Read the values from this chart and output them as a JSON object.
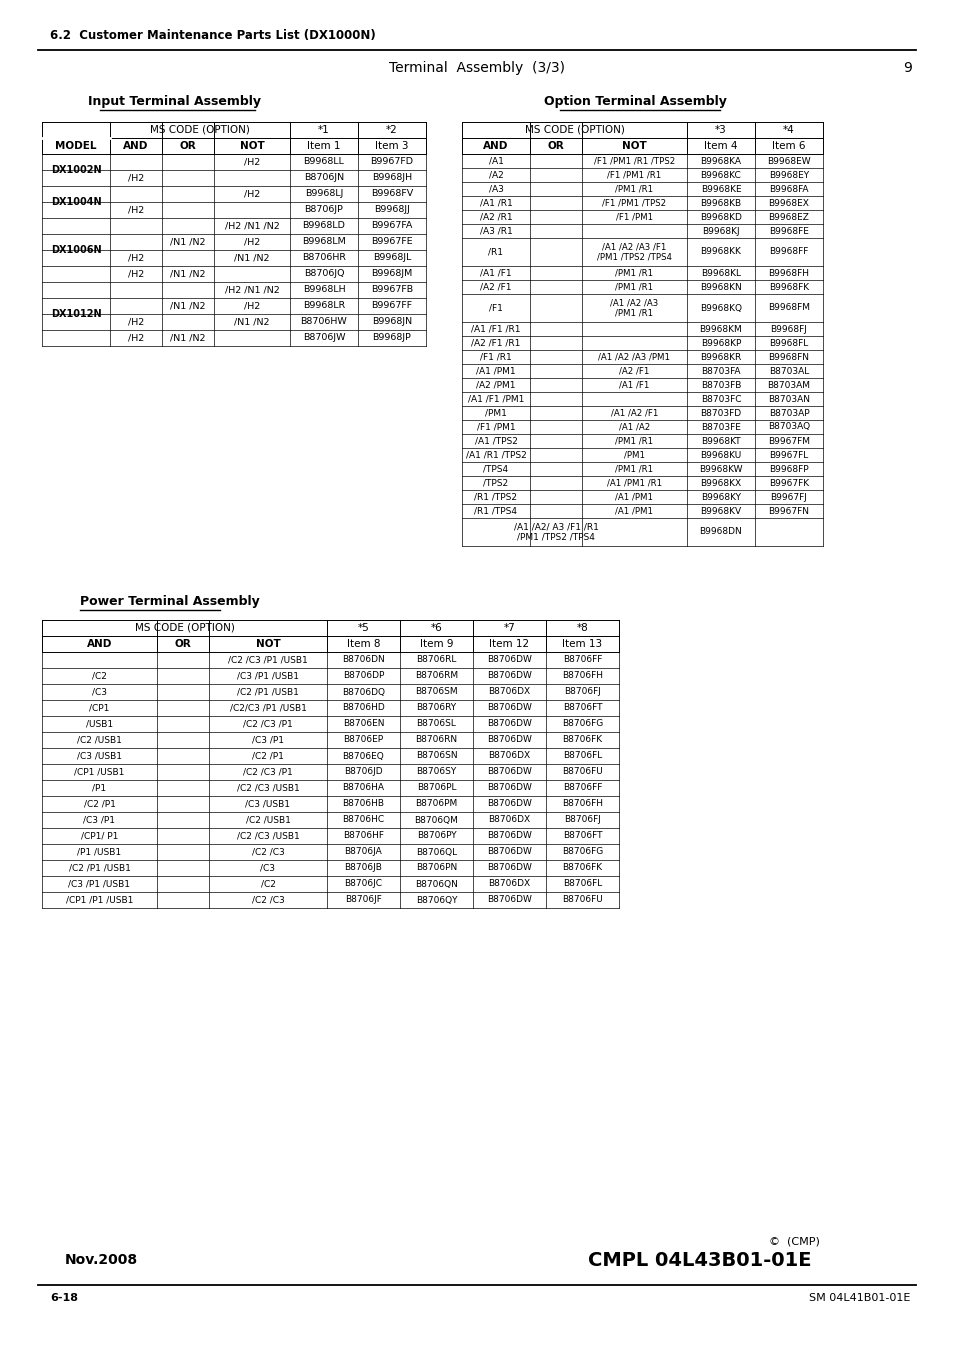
{
  "page_title_left": "6.2  Customer Maintenance Parts List (DX1000N)",
  "page_title_center": "Terminal  Assembly  (3/3)",
  "page_number": "9",
  "footer_left": "6-18",
  "footer_right": "SM 04L41B01-01E",
  "copyright": "©  (CMP)",
  "bottom_right": "CMPL 04L43B01-01E",
  "date": "Nov.2008",
  "input_title": "Input Terminal Assembly",
  "option_title": "Option Terminal Assembly",
  "power_title": "Power Terminal Assembly",
  "input_rows": [
    [
      "",
      "",
      "/H2",
      "B9968LL",
      "B9967FD"
    ],
    [
      "/H2",
      "",
      "",
      "B8706JN",
      "B9968JH"
    ],
    [
      "",
      "",
      "/H2",
      "B9968LJ",
      "B9968FV"
    ],
    [
      "/H2",
      "",
      "",
      "B8706JP",
      "B9968JJ"
    ],
    [
      "",
      "",
      "/H2 /N1 /N2",
      "B9968LD",
      "B9967FA"
    ],
    [
      "",
      "/N1 /N2",
      "/H2",
      "B9968LM",
      "B9967FE"
    ],
    [
      "/H2",
      "",
      "/N1 /N2",
      "B8706HR",
      "B9968JL"
    ],
    [
      "/H2",
      "/N1 /N2",
      "",
      "B8706JQ",
      "B9968JM"
    ],
    [
      "",
      "",
      "/H2 /N1 /N2",
      "B9968LH",
      "B9967FB"
    ],
    [
      "",
      "/N1 /N2",
      "/H2",
      "B9968LR",
      "B9967FF"
    ],
    [
      "/H2",
      "",
      "/N1 /N2",
      "B8706HW",
      "B9968JN"
    ],
    [
      "/H2",
      "/N1 /N2",
      "",
      "B8706JW",
      "B9968JP"
    ]
  ],
  "input_models": [
    "DX1002N",
    "DX1004N",
    "DX1006N",
    "DX1012N"
  ],
  "input_model_spans": [
    2,
    2,
    4,
    4
  ],
  "opt_rows": [
    [
      "/A1",
      "",
      "/F1 /PM1 /R1 /TPS2",
      "B9968KA",
      "B9968EW"
    ],
    [
      "/A2",
      "",
      "/F1 /PM1 /R1",
      "B9968KC",
      "B9968EY"
    ],
    [
      "/A3",
      "",
      "/PM1 /R1",
      "B9968KE",
      "B9968FA"
    ],
    [
      "/A1 /R1",
      "",
      "/F1 /PM1 /TPS2",
      "B9968KB",
      "B9968EX"
    ],
    [
      "/A2 /R1",
      "",
      "/F1 /PM1",
      "B9968KD",
      "B9968EZ"
    ],
    [
      "/A3 /R1",
      "",
      "",
      "B9968KJ",
      "B9968FE"
    ],
    [
      "/R1",
      "",
      "/A1 /A2 /A3 /F1\n/PM1 /TPS2 /TPS4",
      "B9968KK",
      "B9968FF"
    ],
    [
      "/A1 /F1",
      "",
      "/PM1 /R1",
      "B9968KL",
      "B9968FH"
    ],
    [
      "/A2 /F1",
      "",
      "/PM1 /R1",
      "B9968KN",
      "B9968FK"
    ],
    [
      "/F1",
      "",
      "/A1 /A2 /A3\n/PM1 /R1",
      "B9968KQ",
      "B9968FM"
    ],
    [
      "/A1 /F1 /R1",
      "",
      "",
      "B9968KM",
      "B9968FJ"
    ],
    [
      "/A2 /F1 /R1",
      "",
      "",
      "B9968KP",
      "B9968FL"
    ],
    [
      "/F1 /R1",
      "",
      "/A1 /A2 /A3 /PM1",
      "B9968KR",
      "B9968FN"
    ],
    [
      "/A1 /PM1",
      "",
      "/A2 /F1",
      "B8703FA",
      "B8703AL"
    ],
    [
      "/A2 /PM1",
      "",
      "/A1 /F1",
      "B8703FB",
      "B8703AM"
    ],
    [
      "/A1 /F1 /PM1",
      "",
      "",
      "B8703FC",
      "B8703AN"
    ],
    [
      "/PM1",
      "",
      "/A1 /A2 /F1",
      "B8703FD",
      "B8703AP"
    ],
    [
      "/F1 /PM1",
      "",
      "/A1 /A2",
      "B8703FE",
      "B8703AQ"
    ],
    [
      "/A1 /TPS2",
      "",
      "/PM1 /R1",
      "B9968KT",
      "B9967FM"
    ],
    [
      "/A1 /R1 /TPS2",
      "",
      "/PM1",
      "B9968KU",
      "B9967FL"
    ],
    [
      "/TPS4",
      "",
      "/PM1 /R1",
      "B9968KW",
      "B9968FP"
    ],
    [
      "/TPS2",
      "",
      "/A1 /PM1 /R1",
      "B9968KX",
      "B9967FK"
    ],
    [
      "/R1 /TPS2",
      "",
      "/A1 /PM1",
      "B9968KY",
      "B9967FJ"
    ],
    [
      "/R1 /TPS4",
      "",
      "/A1 /PM1",
      "B9968KV",
      "B9967FN"
    ],
    [
      "",
      "/A1 /A2/ A3 /F1 /R1\n/PM1 /TPS2 /TPS4",
      "",
      "B9968DN",
      ""
    ]
  ],
  "pwr_rows": [
    [
      "",
      "",
      "/C2 /C3 /P1 /USB1",
      "B8706DN",
      "B8706RL",
      "B8706DW",
      "B8706FF"
    ],
    [
      "/C2",
      "",
      "/C3 /P1 /USB1",
      "B8706DP",
      "B8706RM",
      "B8706DW",
      "B8706FH"
    ],
    [
      "/C3",
      "",
      "/C2 /P1 /USB1",
      "B8706DQ",
      "B8706SM",
      "B8706DX",
      "B8706FJ"
    ],
    [
      "/CP1",
      "",
      "/C2/C3 /P1 /USB1",
      "B8706HD",
      "B8706RY",
      "B8706DW",
      "B8706FT"
    ],
    [
      "/USB1",
      "",
      "/C2 /C3 /P1",
      "B8706EN",
      "B8706SL",
      "B8706DW",
      "B8706FG"
    ],
    [
      "/C2 /USB1",
      "",
      "/C3 /P1",
      "B8706EP",
      "B8706RN",
      "B8706DW",
      "B8706FK"
    ],
    [
      "/C3 /USB1",
      "",
      "/C2 /P1",
      "B8706EQ",
      "B8706SN",
      "B8706DX",
      "B8706FL"
    ],
    [
      "/CP1 /USB1",
      "",
      "/C2 /C3 /P1",
      "B8706JD",
      "B8706SY",
      "B8706DW",
      "B8706FU"
    ],
    [
      "/P1",
      "",
      "/C2 /C3 /USB1",
      "B8706HA",
      "B8706PL",
      "B8706DW",
      "B8706FF"
    ],
    [
      "/C2 /P1",
      "",
      "/C3 /USB1",
      "B8706HB",
      "B8706PM",
      "B8706DW",
      "B8706FH"
    ],
    [
      "/C3 /P1",
      "",
      "/C2 /USB1",
      "B8706HC",
      "B8706QM",
      "B8706DX",
      "B8706FJ"
    ],
    [
      "/CP1/ P1",
      "",
      "/C2 /C3 /USB1",
      "B8706HF",
      "B8706PY",
      "B8706DW",
      "B8706FT"
    ],
    [
      "/P1 /USB1",
      "",
      "/C2 /C3",
      "B8706JA",
      "B8706QL",
      "B8706DW",
      "B8706FG"
    ],
    [
      "/C2 /P1 /USB1",
      "",
      "/C3",
      "B8706JB",
      "B8706PN",
      "B8706DW",
      "B8706FK"
    ],
    [
      "/C3 /P1 /USB1",
      "",
      "/C2",
      "B8706JC",
      "B8706QN",
      "B8706DX",
      "B8706FL"
    ],
    [
      "/CP1 /P1 /USB1",
      "",
      "/C2 /C3",
      "B8706JF",
      "B8706QY",
      "B8706DW",
      "B8706FU"
    ]
  ]
}
